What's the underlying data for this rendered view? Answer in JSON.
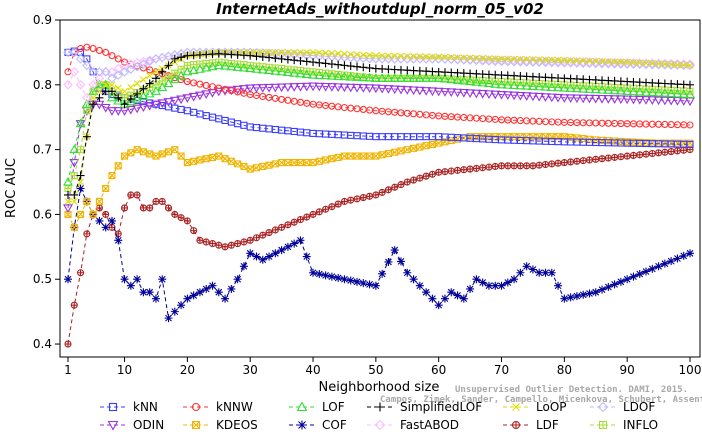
{
  "chart_data": {
    "type": "line",
    "title": "InternetAds_withoutdupl_norm_05_v02",
    "xlabel": "Neighborhood size",
    "ylabel": "ROC AUC",
    "xlim": [
      1,
      100
    ],
    "ylim": [
      0.38,
      0.9
    ],
    "xticks": [
      1,
      10,
      20,
      30,
      40,
      50,
      60,
      70,
      80,
      90,
      100
    ],
    "yticks": [
      0.4,
      0.5,
      0.6,
      0.7,
      0.8,
      0.9
    ],
    "grid": false,
    "legend_position": "bottom",
    "credit": "Campos, Zimek, Sander, Campello, Micenkova, Schubert, Assent, Houle",
    "credit_line1": "Unsupervised Outlier Detection. DAMI, 2015.",
    "series": [
      {
        "name": "kNN",
        "color": "#3b3bff",
        "marker": "square",
        "x": [
          1,
          2,
          3,
          4,
          5,
          6,
          7,
          8,
          10,
          15,
          20,
          30,
          40,
          50,
          60,
          70,
          80,
          90,
          100
        ],
        "y": [
          0.85,
          0.852,
          0.85,
          0.84,
          0.82,
          0.795,
          0.79,
          0.785,
          0.78,
          0.77,
          0.76,
          0.735,
          0.725,
          0.72,
          0.72,
          0.715,
          0.712,
          0.71,
          0.708
        ]
      },
      {
        "name": "kNNW",
        "color": "#ff3333",
        "marker": "circle",
        "x": [
          1,
          2,
          3,
          4,
          5,
          6,
          7,
          8,
          10,
          15,
          20,
          30,
          40,
          50,
          60,
          70,
          80,
          90,
          100
        ],
        "y": [
          0.82,
          0.85,
          0.856,
          0.858,
          0.856,
          0.853,
          0.85,
          0.845,
          0.835,
          0.82,
          0.805,
          0.785,
          0.77,
          0.76,
          0.752,
          0.746,
          0.742,
          0.74,
          0.738
        ]
      },
      {
        "name": "LOF",
        "color": "#33dd33",
        "marker": "triangle-up",
        "x": [
          1,
          2,
          3,
          4,
          5,
          6,
          7,
          8,
          10,
          15,
          20,
          25,
          30,
          40,
          50,
          60,
          70,
          80,
          90,
          100
        ],
        "y": [
          0.65,
          0.7,
          0.74,
          0.77,
          0.79,
          0.8,
          0.8,
          0.78,
          0.77,
          0.79,
          0.82,
          0.83,
          0.825,
          0.815,
          0.81,
          0.81,
          0.8,
          0.795,
          0.79,
          0.785
        ]
      },
      {
        "name": "SimplifiedLOF",
        "color": "#000000",
        "marker": "plus",
        "x": [
          1,
          2,
          3,
          4,
          5,
          6,
          7,
          8,
          10,
          15,
          18,
          20,
          25,
          30,
          40,
          50,
          60,
          70,
          80,
          90,
          100
        ],
        "y": [
          0.63,
          0.63,
          0.66,
          0.72,
          0.77,
          0.78,
          0.79,
          0.79,
          0.77,
          0.81,
          0.84,
          0.845,
          0.848,
          0.845,
          0.835,
          0.825,
          0.82,
          0.815,
          0.81,
          0.805,
          0.8
        ]
      },
      {
        "name": "LoOP",
        "color": "#dddd00",
        "marker": "x",
        "x": [
          1,
          2,
          3,
          4,
          5,
          6,
          7,
          8,
          10,
          15,
          20,
          25,
          30,
          40,
          50,
          60,
          70,
          80,
          90,
          100
        ],
        "y": [
          0.62,
          0.62,
          0.65,
          0.72,
          0.78,
          0.79,
          0.8,
          0.8,
          0.79,
          0.82,
          0.845,
          0.85,
          0.85,
          0.85,
          0.845,
          0.843,
          0.84,
          0.838,
          0.835,
          0.83
        ]
      },
      {
        "name": "LDOF",
        "color": "#bbbbff",
        "marker": "diamond",
        "x": [
          1,
          2,
          3,
          4,
          5,
          6,
          7,
          8,
          10,
          15,
          20,
          25,
          30,
          40,
          50,
          60,
          70,
          80,
          90,
          100
        ],
        "y": [
          0.85,
          0.85,
          0.84,
          0.83,
          0.82,
          0.82,
          0.82,
          0.81,
          0.82,
          0.84,
          0.85,
          0.85,
          0.85,
          0.845,
          0.84,
          0.84,
          0.836,
          0.834,
          0.832,
          0.83
        ]
      },
      {
        "name": "ODIN",
        "color": "#9933dd",
        "marker": "triangle-down",
        "x": [
          1,
          2,
          3,
          4,
          5,
          6,
          7,
          8,
          10,
          15,
          20,
          25,
          30,
          40,
          50,
          60,
          70,
          80,
          90,
          100
        ],
        "y": [
          0.61,
          0.68,
          0.74,
          0.76,
          0.77,
          0.77,
          0.765,
          0.76,
          0.76,
          0.77,
          0.78,
          0.79,
          0.795,
          0.798,
          0.795,
          0.79,
          0.785,
          0.78,
          0.778,
          0.775
        ]
      },
      {
        "name": "KDEOS",
        "color": "#f0b400",
        "marker": "square-x",
        "x": [
          1,
          2,
          3,
          4,
          5,
          6,
          7,
          8,
          10,
          12,
          15,
          18,
          20,
          25,
          30,
          35,
          40,
          45,
          50,
          55,
          60,
          65,
          70,
          75,
          80,
          85,
          90,
          95,
          100
        ],
        "y": [
          0.6,
          0.58,
          0.6,
          0.62,
          0.6,
          0.62,
          0.64,
          0.66,
          0.69,
          0.7,
          0.69,
          0.7,
          0.68,
          0.69,
          0.67,
          0.68,
          0.68,
          0.69,
          0.69,
          0.7,
          0.71,
          0.72,
          0.72,
          0.72,
          0.72,
          0.715,
          0.712,
          0.71,
          0.71
        ]
      },
      {
        "name": "COF",
        "color": "#000099",
        "marker": "asterisk",
        "x": [
          1,
          2,
          3,
          4,
          5,
          6,
          7,
          8,
          9,
          10,
          11,
          12,
          13,
          14,
          15,
          16,
          17,
          18,
          20,
          22,
          24,
          26,
          28,
          30,
          32,
          34,
          36,
          38,
          40,
          45,
          50,
          53,
          55,
          58,
          60,
          62,
          64,
          66,
          68,
          70,
          72,
          74,
          76,
          78,
          80,
          85,
          90,
          95,
          100
        ],
        "y": [
          0.5,
          0.58,
          0.64,
          0.62,
          0.6,
          0.59,
          0.58,
          0.59,
          0.56,
          0.5,
          0.49,
          0.5,
          0.48,
          0.48,
          0.47,
          0.5,
          0.44,
          0.45,
          0.47,
          0.48,
          0.49,
          0.47,
          0.5,
          0.54,
          0.53,
          0.54,
          0.55,
          0.56,
          0.51,
          0.5,
          0.49,
          0.545,
          0.51,
          0.48,
          0.46,
          0.48,
          0.47,
          0.5,
          0.49,
          0.49,
          0.5,
          0.52,
          0.51,
          0.51,
          0.47,
          0.48,
          0.5,
          0.52,
          0.54
        ]
      },
      {
        "name": "FastABOD",
        "color": "#ffbbff",
        "marker": "diamond",
        "x": [
          1,
          2,
          3,
          4,
          5,
          6,
          7,
          8,
          10,
          15,
          20,
          25,
          30,
          40,
          50,
          60,
          70,
          80,
          90,
          100
        ],
        "y": [
          0.8,
          0.82,
          0.8,
          0.78,
          0.8,
          0.81,
          0.82,
          0.82,
          0.83,
          0.84,
          0.85,
          0.85,
          0.85,
          0.845,
          0.84,
          0.84,
          0.838,
          0.836,
          0.834,
          0.832
        ]
      },
      {
        "name": "LDF",
        "color": "#aa2222",
        "marker": "circle-plus",
        "x": [
          1,
          2,
          3,
          4,
          5,
          6,
          7,
          8,
          9,
          10,
          11,
          12,
          13,
          14,
          15,
          16,
          17,
          18,
          20,
          22,
          24,
          26,
          28,
          30,
          35,
          40,
          45,
          50,
          55,
          60,
          65,
          70,
          75,
          80,
          85,
          90,
          95,
          100
        ],
        "y": [
          0.4,
          0.46,
          0.51,
          0.57,
          0.6,
          0.61,
          0.6,
          0.58,
          0.57,
          0.61,
          0.63,
          0.63,
          0.61,
          0.61,
          0.62,
          0.62,
          0.61,
          0.6,
          0.59,
          0.56,
          0.555,
          0.55,
          0.555,
          0.56,
          0.58,
          0.6,
          0.62,
          0.63,
          0.65,
          0.665,
          0.67,
          0.675,
          0.675,
          0.68,
          0.685,
          0.69,
          0.695,
          0.7
        ]
      },
      {
        "name": "INFLO",
        "color": "#aadd33",
        "marker": "square-plus",
        "x": [
          1,
          2,
          3,
          4,
          5,
          6,
          7,
          8,
          10,
          15,
          20,
          25,
          30,
          40,
          50,
          60,
          70,
          80,
          90,
          100
        ],
        "y": [
          0.64,
          0.66,
          0.7,
          0.76,
          0.79,
          0.8,
          0.8,
          0.79,
          0.78,
          0.8,
          0.83,
          0.835,
          0.83,
          0.82,
          0.81,
          0.81,
          0.805,
          0.8,
          0.795,
          0.79
        ]
      }
    ]
  }
}
